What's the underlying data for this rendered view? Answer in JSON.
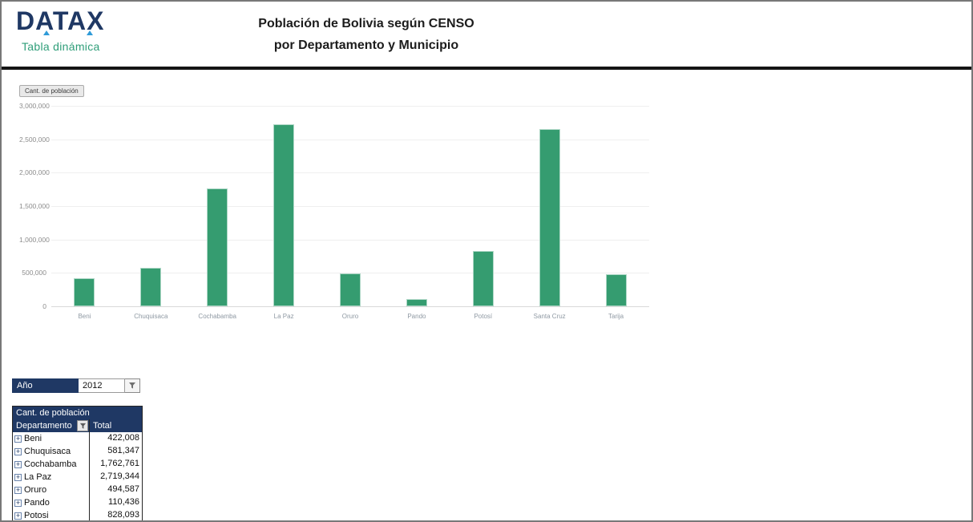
{
  "colors": {
    "navy": "#1f3864",
    "green_text": "#2f9e79",
    "bar": "#359c70"
  },
  "header": {
    "logo_text": "DATAX",
    "logo_subtitle": "Tabla dinámica",
    "title_line1": "Población de Bolivia según CENSO",
    "title_line2": "por Departamento y Municipio"
  },
  "chart": {
    "field_button": "Cant. de población"
  },
  "chart_data": {
    "type": "bar",
    "title": "Cant. de población",
    "categories": [
      "Beni",
      "Chuquisaca",
      "Cochabamba",
      "La Paz",
      "Oruro",
      "Pando",
      "Potosí",
      "Santa Cruz",
      "Tarija"
    ],
    "values": [
      422008,
      581347,
      1762761,
      2719344,
      494587,
      110436,
      828093,
      2655084,
      482196
    ],
    "xlabel": "",
    "ylabel": "",
    "ylim": [
      0,
      3000000
    ],
    "yticks": [
      0,
      500000,
      1000000,
      1500000,
      2000000,
      2500000,
      3000000
    ],
    "ytick_labels": [
      "0",
      "500,000",
      "1,000,000",
      "1,500,000",
      "2,000,000",
      "2,500,000",
      "3,000,000"
    ],
    "grid": true,
    "legend": false,
    "bar_color": "#359c70"
  },
  "filter": {
    "label": "Año",
    "value": "2012"
  },
  "pivot": {
    "title": "Cant. de población",
    "col1": "Departamento",
    "col2": "Total",
    "rows": [
      {
        "label": "Beni",
        "value": "422,008"
      },
      {
        "label": "Chuquisaca",
        "value": "581,347"
      },
      {
        "label": "Cochabamba",
        "value": "1,762,761"
      },
      {
        "label": "La Paz",
        "value": "2,719,344"
      },
      {
        "label": "Oruro",
        "value": "494,587"
      },
      {
        "label": "Pando",
        "value": "110,436"
      },
      {
        "label": "Potosi",
        "value": "828,093"
      }
    ]
  }
}
